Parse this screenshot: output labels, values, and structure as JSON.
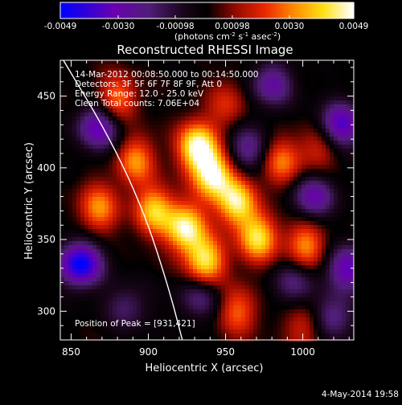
{
  "colorbar": {
    "ticks": [
      "-0.0049",
      "-0.0030",
      "-0.00098",
      "0.00098",
      "0.0030",
      "0.0049"
    ],
    "unit_label": "(photons cm",
    "unit_exp1": "-2",
    "unit_mid": " s",
    "unit_exp2": "-1",
    "unit_mid2": " asec",
    "unit_exp3": "-2",
    "unit_end": ")"
  },
  "chart_data": {
    "type": "heatmap",
    "title": "Reconstructed RHESSI Image",
    "xlabel": "Heliocentric X (arcsec)",
    "ylabel": "Heliocentric Y (arcsec)",
    "xlim": [
      843,
      1033
    ],
    "ylim": [
      280,
      475
    ],
    "x_ticks": [
      850,
      900,
      950,
      1000
    ],
    "y_ticks": [
      300,
      350,
      400,
      450
    ],
    "color_range": [
      -0.0049,
      0.0049
    ],
    "annotations": [
      "14-Mar-2012 00:08:50.000 to 00:14:50.000",
      "Detectors: 3F 5F 6F 7F 8F 9F, Att 0",
      "Energy Range: 12.0 - 25.0 keV",
      "Clean     Total counts: 7.06E+04"
    ],
    "peak_label": "Position of Peak = [931,421]",
    "peak": [
      931,
      421
    ],
    "bright_blobs": [
      {
        "x": 932,
        "y": 415,
        "peak": 1.0
      },
      {
        "x": 942,
        "y": 395,
        "peak": 0.95
      },
      {
        "x": 924,
        "y": 358,
        "peak": 0.92
      },
      {
        "x": 937,
        "y": 335,
        "peak": 0.85
      },
      {
        "x": 957,
        "y": 376,
        "peak": 0.85
      },
      {
        "x": 971,
        "y": 351,
        "peak": 0.82
      },
      {
        "x": 904,
        "y": 370,
        "peak": 0.75
      },
      {
        "x": 892,
        "y": 405,
        "peak": 0.6
      },
      {
        "x": 880,
        "y": 448,
        "peak": 0.55
      },
      {
        "x": 868,
        "y": 372,
        "peak": 0.6
      },
      {
        "x": 1002,
        "y": 346,
        "peak": 0.6
      },
      {
        "x": 986,
        "y": 404,
        "peak": 0.55
      },
      {
        "x": 1010,
        "y": 413,
        "peak": 0.35
      },
      {
        "x": 951,
        "y": 445,
        "peak": 0.35
      },
      {
        "x": 958,
        "y": 300,
        "peak": 0.5
      },
      {
        "x": 1002,
        "y": 290,
        "peak": 0.4
      }
    ],
    "dark_blobs": [
      {
        "x": 856,
        "y": 333,
        "depth": 1.0
      },
      {
        "x": 868,
        "y": 428,
        "depth": 0.7
      },
      {
        "x": 1025,
        "y": 430,
        "depth": 0.75
      },
      {
        "x": 1007,
        "y": 380,
        "depth": 0.6
      },
      {
        "x": 1030,
        "y": 330,
        "depth": 0.7
      },
      {
        "x": 980,
        "y": 458,
        "depth": 0.55
      },
      {
        "x": 964,
        "y": 413,
        "depth": 0.5
      },
      {
        "x": 994,
        "y": 320,
        "depth": 0.4
      },
      {
        "x": 933,
        "y": 310,
        "depth": 0.4
      },
      {
        "x": 886,
        "y": 303,
        "depth": 0.35
      },
      {
        "x": 1018,
        "y": 296,
        "depth": 0.5
      }
    ],
    "limb_curve": [
      [
        845,
        475
      ],
      [
        875,
        421
      ],
      [
        897,
        370
      ],
      [
        913,
        317
      ],
      [
        922,
        280
      ]
    ]
  },
  "footer": {
    "date": "4-May-2014 19:58"
  }
}
